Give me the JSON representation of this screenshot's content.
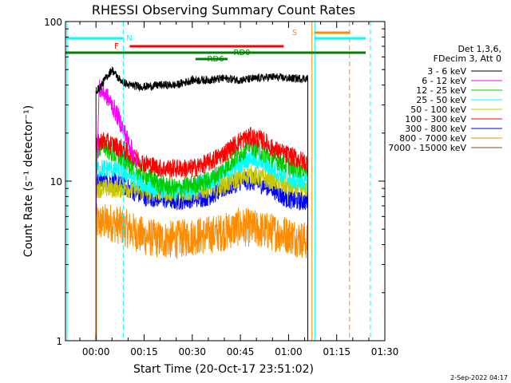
{
  "chart_data": {
    "type": "line",
    "title": "RHESSI Observing Summary Count Rates",
    "xlabel": "Start Time (20-Oct-17 23:51:02)",
    "ylabel": "Count Rate (s⁻¹ detector⁻¹)",
    "yscale": "log",
    "ylim": [
      1,
      100
    ],
    "xlim_minutes": [
      -9.5,
      90
    ],
    "x_ticks": [
      {
        "label": "00:00",
        "min": 0
      },
      {
        "label": "00:15",
        "min": 15
      },
      {
        "label": "00:30",
        "min": 30
      },
      {
        "label": "00:45",
        "min": 45
      },
      {
        "label": "01:00",
        "min": 60
      },
      {
        "label": "01:15",
        "min": 75
      },
      {
        "label": "01:30",
        "min": 90
      }
    ],
    "y_ticks": [
      {
        "label": "1",
        "v": 1
      },
      {
        "label": "10",
        "v": 10
      },
      {
        "label": "100",
        "v": 100
      }
    ],
    "legend_header": [
      "Det 1,3,6,",
      "FDecim 3, Att 0"
    ],
    "series": [
      {
        "name": "3 - 6 keV",
        "color": "#000000",
        "points": [
          [
            0,
            37
          ],
          [
            1,
            38
          ],
          [
            3,
            44
          ],
          [
            5,
            50
          ],
          [
            7,
            44
          ],
          [
            10,
            40
          ],
          [
            15,
            39
          ],
          [
            20,
            40
          ],
          [
            25,
            40
          ],
          [
            30,
            43
          ],
          [
            35,
            43
          ],
          [
            40,
            44
          ],
          [
            45,
            43
          ],
          [
            50,
            44
          ],
          [
            55,
            45
          ],
          [
            60,
            44
          ],
          [
            66,
            44
          ]
        ]
      },
      {
        "name": "6 - 12 keV",
        "color": "#ff00ff",
        "points": [
          [
            0,
            7
          ],
          [
            1,
            38
          ],
          [
            3,
            35
          ],
          [
            5,
            30
          ],
          [
            7,
            25
          ],
          [
            9,
            20
          ],
          [
            11,
            16
          ],
          [
            13,
            13
          ]
        ]
      },
      {
        "name": "12 - 25 keV",
        "color": "#00cc00",
        "points": [
          [
            0,
            15
          ],
          [
            2,
            17
          ],
          [
            5,
            15
          ],
          [
            10,
            13
          ],
          [
            15,
            11
          ],
          [
            20,
            9.5
          ],
          [
            25,
            9
          ],
          [
            30,
            9.5
          ],
          [
            35,
            10
          ],
          [
            40,
            12
          ],
          [
            45,
            15
          ],
          [
            48,
            17
          ],
          [
            52,
            15
          ],
          [
            55,
            14
          ],
          [
            58,
            13
          ],
          [
            62,
            12
          ],
          [
            66,
            12
          ]
        ]
      },
      {
        "name": "25 - 50 keV",
        "color": "#00ffff",
        "points": [
          [
            0,
            12
          ],
          [
            5,
            12
          ],
          [
            10,
            11
          ],
          [
            15,
            9.5
          ],
          [
            20,
            9
          ],
          [
            25,
            8.5
          ],
          [
            30,
            9
          ],
          [
            35,
            10
          ],
          [
            40,
            11
          ],
          [
            45,
            13
          ],
          [
            48,
            14
          ],
          [
            52,
            13
          ],
          [
            55,
            12
          ],
          [
            58,
            11
          ],
          [
            62,
            10
          ],
          [
            66,
            10
          ]
        ]
      },
      {
        "name": "50 - 100 keV",
        "color": "#c8c800",
        "points": [
          [
            0,
            9
          ],
          [
            10,
            9
          ],
          [
            20,
            8.5
          ],
          [
            30,
            8.5
          ],
          [
            40,
            9.5
          ],
          [
            48,
            11
          ],
          [
            55,
            10
          ],
          [
            62,
            9
          ],
          [
            66,
            9
          ]
        ]
      },
      {
        "name": "100 - 300 keV",
        "color": "#ff0000",
        "points": [
          [
            0,
            17
          ],
          [
            2,
            18
          ],
          [
            5,
            17
          ],
          [
            8,
            16
          ],
          [
            10,
            15
          ],
          [
            15,
            13
          ],
          [
            20,
            12
          ],
          [
            25,
            12
          ],
          [
            30,
            12
          ],
          [
            35,
            13
          ],
          [
            40,
            15
          ],
          [
            45,
            18
          ],
          [
            48,
            19
          ],
          [
            52,
            18
          ],
          [
            55,
            16
          ],
          [
            58,
            15
          ],
          [
            62,
            14
          ],
          [
            66,
            13
          ]
        ]
      },
      {
        "name": "300 - 800 keV",
        "color": "#0000ff",
        "points": [
          [
            0,
            10
          ],
          [
            5,
            10
          ],
          [
            10,
            9
          ],
          [
            15,
            8
          ],
          [
            20,
            7.8
          ],
          [
            25,
            7.5
          ],
          [
            30,
            7.8
          ],
          [
            35,
            8
          ],
          [
            40,
            9
          ],
          [
            45,
            10
          ],
          [
            48,
            10
          ],
          [
            52,
            9.5
          ],
          [
            55,
            9
          ],
          [
            58,
            8
          ],
          [
            62,
            7.5
          ],
          [
            66,
            7.5
          ]
        ]
      },
      {
        "name": "800 - 7000 keV",
        "color": "#ff8c00",
        "points": [
          [
            0,
            5.5
          ],
          [
            5,
            5.5
          ],
          [
            10,
            5
          ],
          [
            15,
            4.5
          ],
          [
            20,
            4.3
          ],
          [
            25,
            4.3
          ],
          [
            30,
            4.5
          ],
          [
            35,
            4.6
          ],
          [
            40,
            4.8
          ],
          [
            45,
            5.2
          ],
          [
            50,
            5
          ],
          [
            55,
            4.8
          ],
          [
            60,
            4.6
          ],
          [
            66,
            4.2
          ]
        ]
      },
      {
        "name": "7000 - 15000 keV",
        "color": "#7b5a00",
        "points": []
      }
    ],
    "flags": [
      {
        "label": "N",
        "color": "#00ffff"
      },
      {
        "label": "F",
        "color": "#ff0000"
      },
      {
        "label": "S",
        "color": "#ff8c00"
      },
      {
        "label": "RD0",
        "color": "#008000"
      },
      {
        "label": "RD6",
        "color": "#008000"
      }
    ],
    "vlines": [
      {
        "min": -9.0,
        "color": "#00ffff",
        "style": "solid"
      },
      {
        "min": 8.5,
        "color": "#00ffff",
        "style": "dashed"
      },
      {
        "min": 67.3,
        "color": "#ff8c00",
        "style": "solid"
      },
      {
        "min": 68.2,
        "color": "#00ffff",
        "style": "solid"
      },
      {
        "min": 79.0,
        "color": "#ff8c00",
        "style": "dashed"
      },
      {
        "min": 85.5,
        "color": "#00ffff",
        "style": "dashed"
      }
    ],
    "grid": false,
    "legend_position": "right"
  },
  "footer_date": "2-Sep-2022 04:17"
}
